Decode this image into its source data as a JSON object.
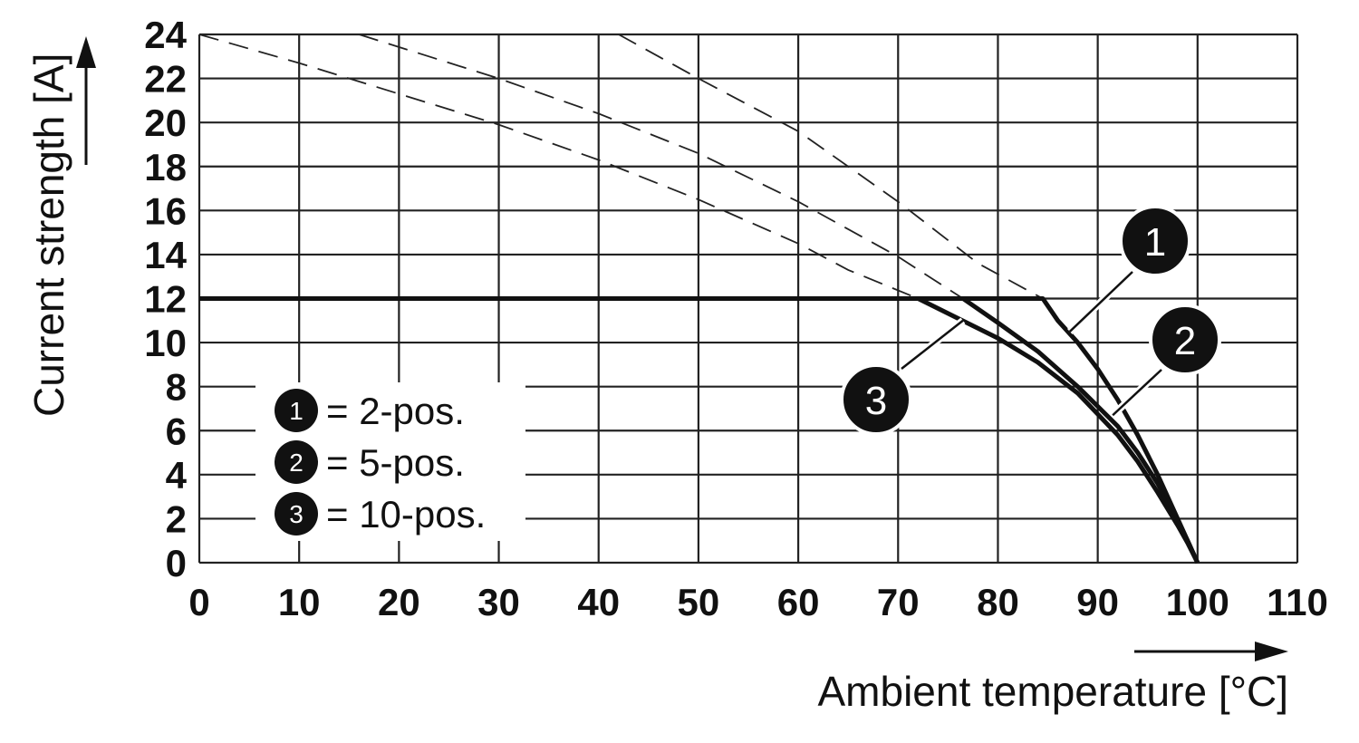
{
  "chart_data": {
    "type": "line",
    "xlabel": "Ambient temperature [°C]",
    "ylabel": "Current strength [A]",
    "xlim": [
      0,
      110
    ],
    "ylim": [
      0,
      24
    ],
    "x_ticks": [
      "0",
      "10",
      "20",
      "30",
      "40",
      "50",
      "60",
      "70",
      "80",
      "90",
      "100",
      "110"
    ],
    "y_ticks": [
      "0",
      "2",
      "4",
      "6",
      "8",
      "10",
      "12",
      "14",
      "16",
      "18",
      "20",
      "22",
      "24"
    ],
    "grid": true,
    "legend_position": "bottom-left",
    "series": [
      {
        "id": "1",
        "name": "2-pos.",
        "legend_label": "= 2-pos.",
        "x": [
          0,
          84.5,
          86,
          88,
          90,
          92,
          94,
          96,
          98,
          99,
          100
        ],
        "y": [
          12,
          12,
          11,
          10,
          8.8,
          7.4,
          5.8,
          4.0,
          2.0,
          1.0,
          0
        ],
        "derating_x": [
          42,
          50,
          60,
          70,
          78,
          84.5
        ],
        "derating_y": [
          24,
          22,
          19.6,
          16.4,
          13.6,
          12
        ]
      },
      {
        "id": "2",
        "name": "5-pos.",
        "legend_label": "= 5-pos.",
        "x": [
          0,
          76.5,
          80,
          84,
          88,
          92,
          94,
          96,
          98,
          99,
          100
        ],
        "y": [
          12,
          12,
          10.9,
          9.6,
          8.0,
          6.2,
          5.0,
          3.6,
          1.9,
          1.0,
          0
        ],
        "derating_x": [
          16,
          30,
          40,
          50,
          60,
          70,
          76.5
        ],
        "derating_y": [
          24,
          22,
          20.4,
          18.6,
          16.4,
          13.9,
          12
        ]
      },
      {
        "id": "3",
        "name": "10-pos.",
        "legend_label": "= 10-pos.",
        "x": [
          0,
          72,
          76,
          80,
          84,
          88,
          92,
          94,
          96,
          98,
          99,
          100
        ],
        "y": [
          12,
          12,
          11.1,
          10.2,
          9.1,
          7.7,
          5.8,
          4.6,
          3.2,
          1.7,
          0.9,
          0
        ],
        "derating_x": [
          0,
          10,
          20,
          30,
          40,
          50,
          60,
          65,
          72
        ],
        "derating_y": [
          24,
          22.7,
          21.3,
          19.9,
          18.3,
          16.5,
          14.5,
          13.3,
          12
        ]
      }
    ]
  }
}
